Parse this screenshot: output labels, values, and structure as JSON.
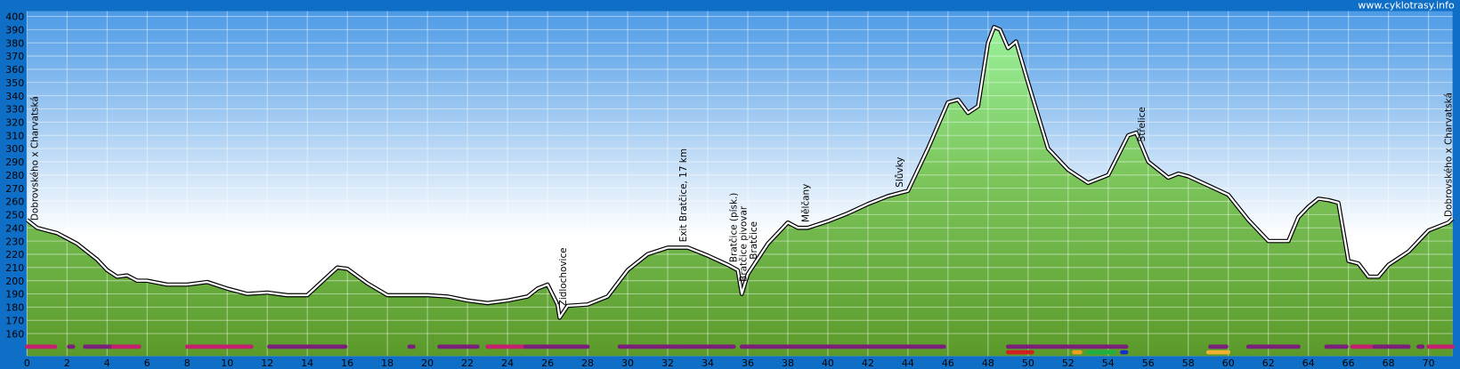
{
  "chart_data": {
    "type": "area",
    "site": "www.cyklotrasy.info",
    "xlim": [
      0,
      71.2
    ],
    "ylim": [
      143,
      404
    ],
    "xticks": [
      0,
      2,
      4,
      6,
      8,
      10,
      12,
      14,
      16,
      18,
      20,
      22,
      24,
      26,
      28,
      30,
      32,
      34,
      36,
      38,
      40,
      42,
      44,
      46,
      48,
      50,
      52,
      54,
      56,
      58,
      60,
      62,
      64,
      66,
      68,
      70
    ],
    "yticks": [
      160,
      170,
      180,
      190,
      200,
      210,
      220,
      230,
      240,
      250,
      260,
      270,
      280,
      290,
      300,
      310,
      320,
      330,
      340,
      350,
      360,
      370,
      380,
      390,
      400
    ],
    "grid": true,
    "x": [
      0,
      0.5,
      1,
      1.5,
      2,
      2.5,
      3,
      3.5,
      4,
      4.5,
      5,
      5.5,
      6,
      7,
      8,
      9,
      10,
      11,
      12,
      13,
      14,
      15,
      15.5,
      16,
      17,
      18,
      19,
      20,
      21,
      22,
      23,
      24,
      25,
      25.5,
      26,
      26.5,
      26.6,
      27,
      28,
      29,
      30,
      31,
      32,
      33,
      34,
      35,
      35.5,
      35.7,
      36,
      37,
      38,
      38.5,
      39,
      40,
      41,
      42,
      43,
      44,
      45,
      46,
      46.5,
      47,
      47.5,
      48,
      48.3,
      48.6,
      49,
      49.4,
      50,
      51,
      52,
      53,
      54,
      55,
      55.4,
      56,
      57,
      57.5,
      58,
      59,
      60,
      61,
      62,
      63,
      63.5,
      64,
      64.5,
      65,
      65.5,
      66,
      66.5,
      67,
      67.5,
      68,
      69,
      70,
      71,
      71.2
    ],
    "values": [
      246,
      240,
      238,
      236,
      232,
      228,
      222,
      216,
      208,
      203,
      204,
      200,
      200,
      197,
      197,
      199,
      194,
      190,
      191,
      189,
      189,
      203,
      210,
      209,
      198,
      189,
      189,
      189,
      188,
      185,
      183,
      185,
      188,
      194,
      197,
      182,
      172,
      181,
      182,
      188,
      208,
      220,
      225,
      225,
      219,
      212,
      208,
      190,
      205,
      228,
      244,
      240,
      240,
      245,
      251,
      258,
      264,
      268,
      300,
      335,
      337,
      327,
      332,
      380,
      392,
      390,
      376,
      381,
      350,
      300,
      284,
      274,
      280,
      310,
      312,
      290,
      278,
      281,
      279,
      272,
      265,
      246,
      230,
      230,
      248,
      256,
      262,
      261,
      259,
      215,
      213,
      203,
      203,
      212,
      222,
      238,
      244,
      247
    ],
    "annotations": [
      {
        "x": 0.4,
        "label": "Dobrovského x Charvatská"
      },
      {
        "x": 26.8,
        "label": "Židlochovice"
      },
      {
        "x": 32.8,
        "label": "Exit Bratčice, 17 km"
      },
      {
        "x": 35.3,
        "label": "Bratčice (písk.)"
      },
      {
        "x": 35.8,
        "label": "Bratčice pivovar"
      },
      {
        "x": 36.3,
        "label": "Bratčice"
      },
      {
        "x": 38.9,
        "label": "Mělčany"
      },
      {
        "x": 43.6,
        "label": "Slůvky"
      },
      {
        "x": 55.7,
        "label": "Střelice"
      },
      {
        "x": 71.0,
        "label": "Dobrovského x Charvatská"
      }
    ],
    "bands": [
      {
        "segments": [
          {
            "start": 0,
            "end": 1.4,
            "color": "#c4206e"
          },
          {
            "start": 2.1,
            "end": 2.3,
            "color": "#7a1f7a"
          },
          {
            "start": 2.9,
            "end": 4.2,
            "color": "#7a1f7a"
          },
          {
            "start": 4.3,
            "end": 5.6,
            "color": "#c4206e"
          },
          {
            "start": 8,
            "end": 11.2,
            "color": "#c4206e"
          },
          {
            "start": 12.1,
            "end": 15.9,
            "color": "#7a1f7a"
          },
          {
            "start": 19.1,
            "end": 19.3,
            "color": "#7a1f7a"
          },
          {
            "start": 20.6,
            "end": 22.5,
            "color": "#7a1f7a"
          },
          {
            "start": 23,
            "end": 24.9,
            "color": "#c4206e"
          },
          {
            "start": 24.9,
            "end": 28,
            "color": "#7a1f7a"
          },
          {
            "start": 29.6,
            "end": 35.3,
            "color": "#7a1f7a"
          },
          {
            "start": 35.7,
            "end": 45.8,
            "color": "#7a1f7a"
          },
          {
            "start": 49,
            "end": 54.9,
            "color": "#7a1f7a"
          },
          {
            "start": 59.1,
            "end": 59.9,
            "color": "#7a1f7a"
          },
          {
            "start": 61,
            "end": 63.5,
            "color": "#7a1f7a"
          },
          {
            "start": 64.9,
            "end": 65.9,
            "color": "#7a1f7a"
          },
          {
            "start": 66.2,
            "end": 67.2,
            "color": "#c4206e"
          },
          {
            "start": 67.3,
            "end": 69,
            "color": "#7a1f7a"
          },
          {
            "start": 69.5,
            "end": 69.7,
            "color": "#7a1f7a"
          },
          {
            "start": 70,
            "end": 71.2,
            "color": "#c4206e"
          }
        ]
      },
      {
        "segments": [
          {
            "start": 49,
            "end": 50.2,
            "color": "#d02020"
          },
          {
            "start": 52.3,
            "end": 52.6,
            "color": "#f0a020"
          },
          {
            "start": 53,
            "end": 54.3,
            "color": "#20b040"
          },
          {
            "start": 54.7,
            "end": 54.9,
            "color": "#1030d0"
          },
          {
            "start": 59,
            "end": 60,
            "color": "#f0b030"
          }
        ]
      }
    ]
  }
}
